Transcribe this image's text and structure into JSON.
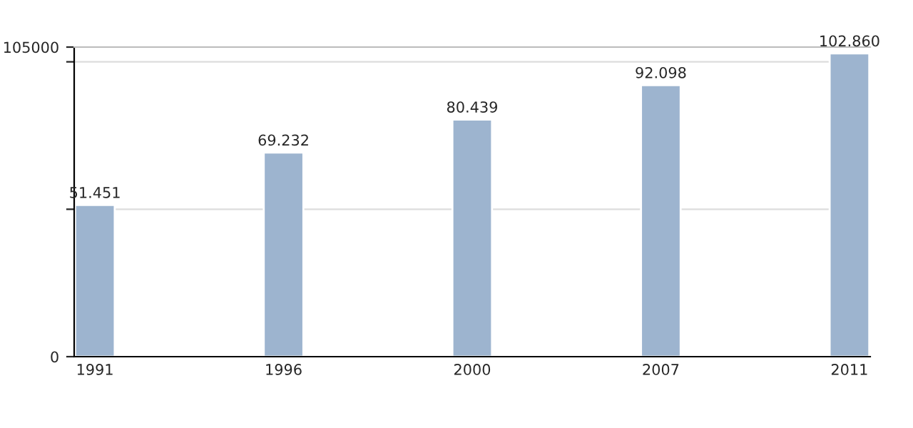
{
  "chart_data": {
    "type": "bar",
    "categories": [
      "1991",
      "1996",
      "2000",
      "2007",
      "2011"
    ],
    "values": [
      51451,
      69232,
      80439,
      92098,
      102860
    ],
    "value_labels": [
      "51.451",
      "69.232",
      "80.439",
      "92.098",
      "102.860"
    ],
    "color": "#9db4cf",
    "ylim": [
      0,
      105000
    ],
    "yticks": [
      0,
      {
        "value": 50000,
        "label": null
      },
      {
        "value": 100000,
        "label": null
      },
      105000
    ],
    "grid": "y"
  }
}
